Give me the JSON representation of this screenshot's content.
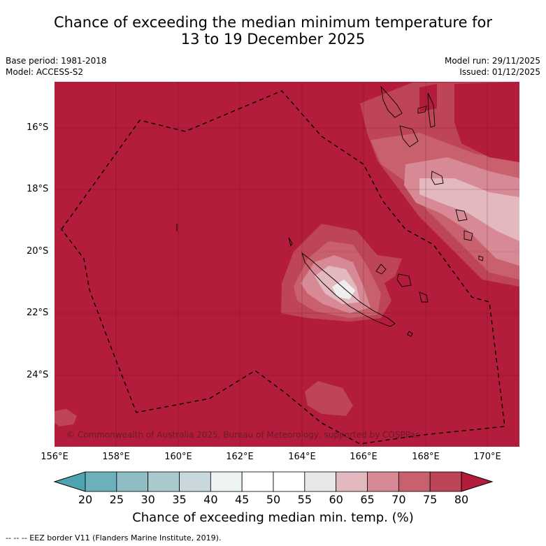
{
  "title_line1": "Chance of exceeding the median minimum temperature for",
  "title_line2": "13 to 19 December 2025",
  "base_period": "Base period: 1981-2018",
  "model": "Model: ACCESS-S2",
  "model_run": "Model run: 29/11/2025",
  "issued": "Issued: 01/12/2025",
  "copyright": "© Commonwealth of Australia 2025, Bureau of Meteorology, supported by COSPPac",
  "lat_labels": [
    "16°S",
    "18°S",
    "20°S",
    "22°S",
    "24°S"
  ],
  "lon_labels": [
    "156°E",
    "158°E",
    "160°E",
    "162°E",
    "164°E",
    "166°E",
    "168°E",
    "170°E"
  ],
  "colorbar": {
    "ticks": [
      "20",
      "25",
      "30",
      "35",
      "40",
      "45",
      "50",
      "55",
      "60",
      "65",
      "70",
      "75",
      "80"
    ],
    "colors": [
      "#4ea3b0",
      "#6cb0bc",
      "#8ebdc5",
      "#a9c9cd",
      "#c8d8dc",
      "#eef3f4",
      "#ffffff",
      "#ffffff",
      "#e8e8e8",
      "#e3b8bf",
      "#d78a95",
      "#c9606e",
      "#be4557",
      "#b31c3a"
    ],
    "label": "Chance of exceeding median min. temp. (%)"
  },
  "footer": "--  --  -- EEZ border V11 (Flanders Marine Institute, 2019).",
  "colors": {
    "background": "#b31c3a"
  }
}
